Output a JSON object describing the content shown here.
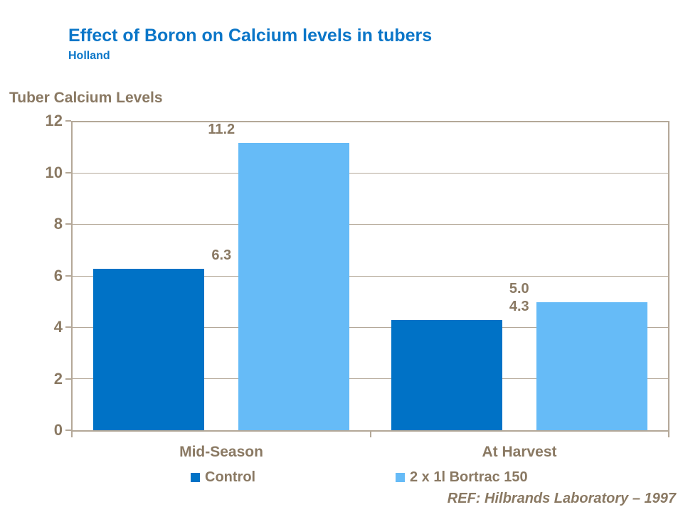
{
  "page": {
    "background": "#ffffff"
  },
  "header": {
    "title": "Effect of Boron on Calcium levels in tubers",
    "subtitle": "Holland",
    "title_color": "#0b76c8"
  },
  "chart_data": {
    "type": "bar",
    "title": "Tuber Calcium Levels",
    "categories": [
      "Mid-Season",
      "At Harvest"
    ],
    "series": [
      {
        "name": "Control",
        "values": [
          6.3,
          4.3
        ],
        "labels": [
          "6.3",
          "4.3"
        ],
        "color": "#0072c6"
      },
      {
        "name": "2 x 1l Bortrac 150",
        "values": [
          11.2,
          5.0
        ],
        "labels": [
          "11.2",
          "5.0"
        ],
        "color": "#66bbf7"
      }
    ],
    "ylim": [
      0,
      12
    ],
    "ytick_interval": 2,
    "ytick_labels": [
      "0",
      "2",
      "4",
      "6",
      "8",
      "10",
      "12"
    ],
    "grid": true,
    "legend_position": "bottom",
    "text_color": "#8a7963",
    "grid_color": "#b4a898"
  },
  "footer": {
    "ref": "REF: Hilbrands Laboratory – 1997"
  }
}
